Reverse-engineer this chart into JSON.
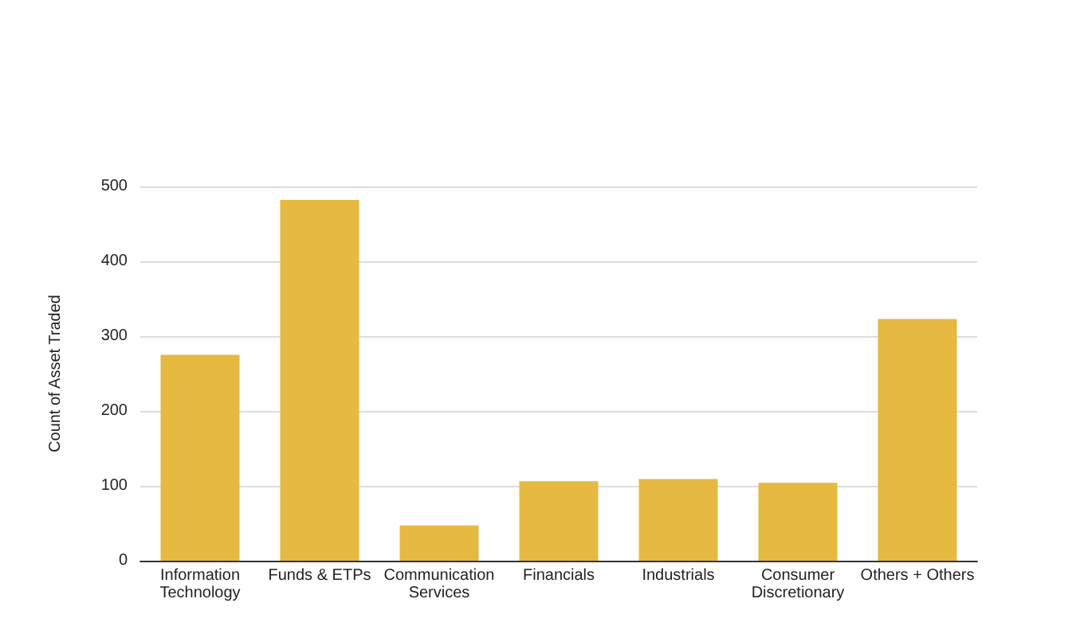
{
  "chart_data": {
    "type": "bar",
    "ylabel": "Count of Asset Traded",
    "categories": [
      "Information\nTechnology",
      "Funds & ETPs",
      "Communication\nServices",
      "Financials",
      "Industrials",
      "Consumer\nDiscretionary",
      "Others + Others"
    ],
    "values": [
      275,
      482,
      47,
      106,
      109,
      104,
      323
    ],
    "color": "#e6b941",
    "ylim": [
      0,
      500
    ],
    "yticks": [
      0,
      100,
      200,
      300,
      400,
      500
    ],
    "grid": "y"
  }
}
